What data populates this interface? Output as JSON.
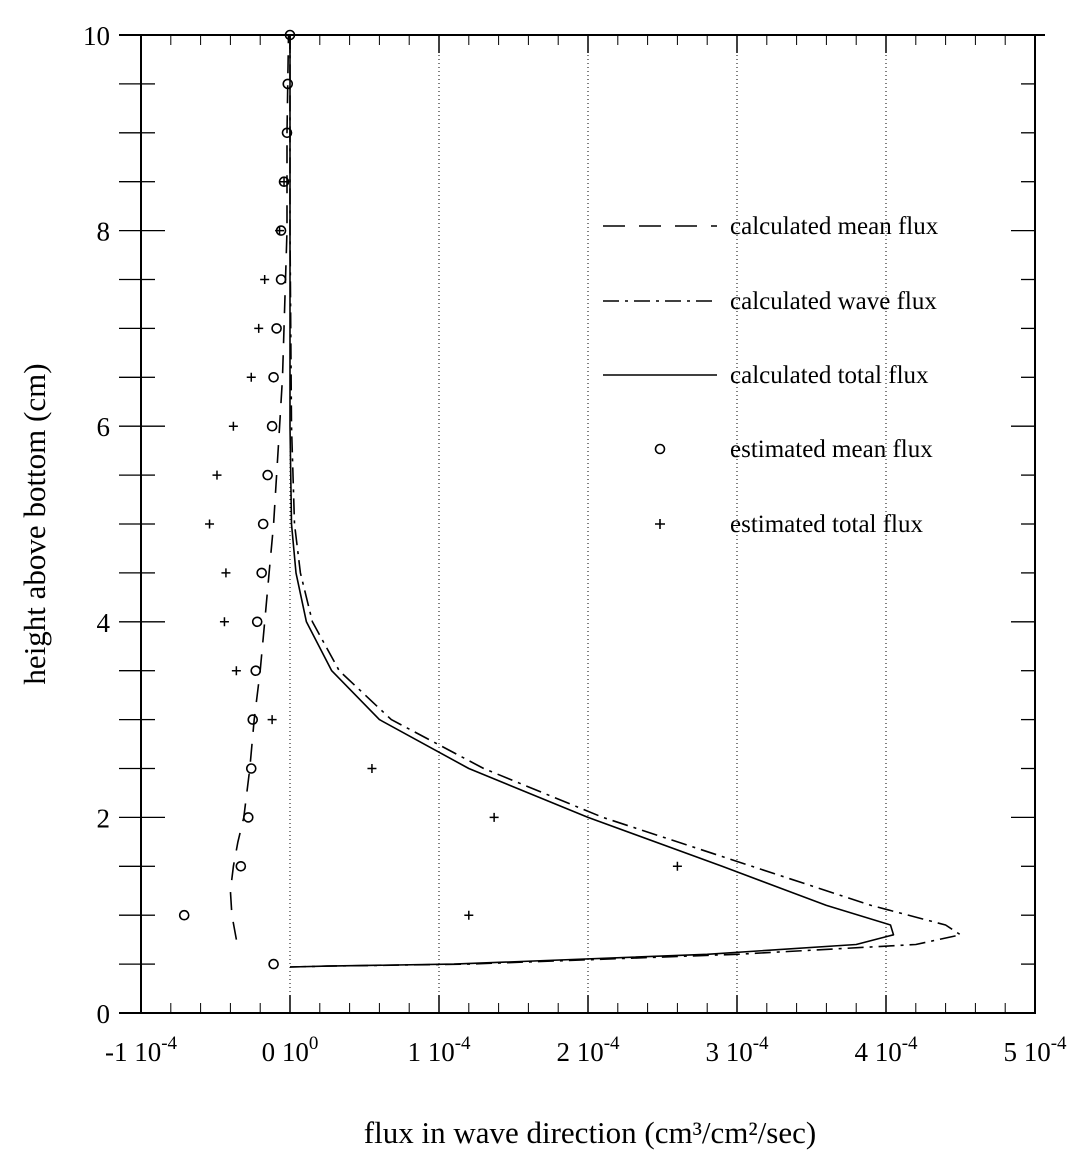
{
  "chart_data": {
    "type": "line",
    "xlabel": "flux in wave direction (cm³/cm²/sec)",
    "ylabel": "height above bottom (cm)",
    "xlim": [
      -0.0001,
      0.0005
    ],
    "ylim": [
      0,
      10
    ],
    "x_tick_labels": [
      "-1 10⁻⁴",
      "0 10⁰",
      "1 10⁻⁴",
      "2 10⁻⁴",
      "3 10⁻⁴",
      "4 10⁻⁴",
      "5 10⁻⁴"
    ],
    "x_tick_values": [
      -0.0001,
      0,
      0.0001,
      0.0002,
      0.0003,
      0.0004,
      0.0005
    ],
    "y_tick_labels": [
      "0",
      "2",
      "4",
      "6",
      "8",
      "10"
    ],
    "y_tick_values": [
      0,
      2,
      4,
      6,
      8,
      10
    ],
    "grid": "dotted vertical lines at x ticks",
    "legend_position": "right, upper half",
    "series": [
      {
        "name": "calculated mean flux",
        "style": "dashed",
        "x": [
          -3.6e-05,
          -3.9e-05,
          -4e-05,
          -3.8e-05,
          -3.5e-05,
          -3.1e-05,
          -2.7e-05,
          -2.4e-05,
          -2e-05,
          -1.7e-05,
          -1.4e-05,
          -1.1e-05,
          -9e-06,
          -7e-06,
          -5e-06,
          -4e-06,
          -3e-06,
          -2e-06,
          -2e-06,
          -1e-06
        ],
        "y": [
          0.75,
          1.0,
          1.25,
          1.5,
          1.75,
          2.0,
          2.5,
          3.0,
          3.5,
          4.0,
          4.5,
          5.0,
          5.5,
          6.0,
          6.5,
          7.0,
          7.5,
          8.0,
          9.0,
          10.0
        ]
      },
      {
        "name": "calculated wave flux",
        "style": "dash-dot",
        "x": [
          0.0,
          2.5e-05,
          0.00012,
          0.0003,
          0.00042,
          0.00045,
          0.00044,
          0.00039,
          0.00031,
          0.00021,
          0.00013,
          6.8e-05,
          3.3e-05,
          1.5e-05,
          7e-06,
          3e-06,
          1e-06,
          0.0,
          0.0
        ],
        "y": [
          0.47,
          0.48,
          0.5,
          0.6,
          0.7,
          0.8,
          0.9,
          1.1,
          1.5,
          2.0,
          2.5,
          3.0,
          3.5,
          4.0,
          4.5,
          5.0,
          6.0,
          8.0,
          10.0
        ]
      },
      {
        "name": "calculated total flux",
        "style": "solid",
        "x": [
          0.0,
          2.5e-05,
          0.00011,
          0.00028,
          0.00038,
          0.000405,
          0.000403,
          0.00036,
          0.00029,
          0.0002,
          0.00012,
          6e-05,
          2.8e-05,
          1.1e-05,
          4e-06,
          1e-06,
          0.0,
          0.0,
          0.0
        ],
        "y": [
          0.47,
          0.48,
          0.5,
          0.6,
          0.7,
          0.8,
          0.9,
          1.1,
          1.5,
          2.0,
          2.5,
          3.0,
          3.5,
          4.0,
          4.5,
          5.0,
          6.0,
          8.0,
          10.0
        ]
      },
      {
        "name": "estimated mean flux",
        "style": "circle",
        "x": [
          -1.1e-05,
          -7.1e-05,
          -3.3e-05,
          -2.8e-05,
          -2.6e-05,
          -2.5e-05,
          -2.3e-05,
          -2.2e-05,
          -1.9e-05,
          -1.8e-05,
          -1.5e-05,
          -1.2e-05,
          -1.1e-05,
          -9e-06,
          -6e-06,
          -6e-06,
          -4e-06,
          -2e-06,
          -1.5e-06,
          0.0
        ],
        "y": [
          0.5,
          1.0,
          1.5,
          2.0,
          2.5,
          3.0,
          3.5,
          4.0,
          4.5,
          5.0,
          5.5,
          6.0,
          6.5,
          7.0,
          7.5,
          8.0,
          8.5,
          9.0,
          9.5,
          10.0
        ]
      },
      {
        "name": "estimated total flux",
        "style": "plus",
        "x": [
          0.00012,
          0.00026,
          0.000137,
          5.5e-05,
          -1.2e-05,
          -3.6e-05,
          -4.4e-05,
          -4.3e-05,
          -5.4e-05,
          -4.9e-05,
          -3.8e-05,
          -2.6e-05,
          -2.1e-05,
          -1.7e-05,
          -7e-06,
          -4e-06
        ],
        "y": [
          1.0,
          1.5,
          2.0,
          2.5,
          3.0,
          3.5,
          4.0,
          4.5,
          5.0,
          5.5,
          6.0,
          6.5,
          7.0,
          7.5,
          8.0,
          8.5
        ]
      }
    ]
  }
}
